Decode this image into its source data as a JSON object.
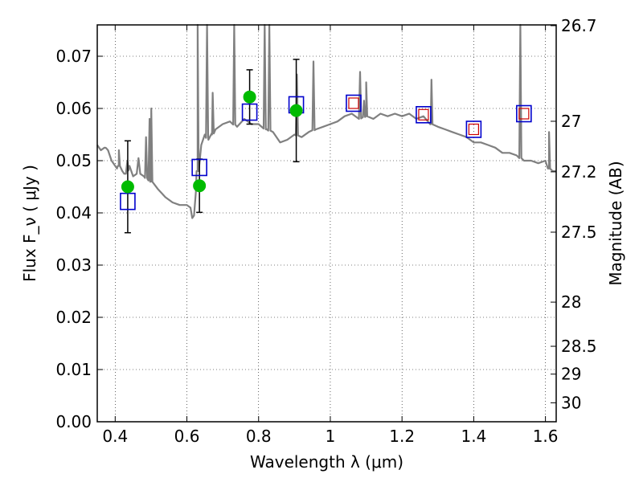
{
  "chart_data": {
    "type": "scatter",
    "xlabel": "Wavelength  λ (μm)",
    "ylabel_left": "Flux  F_ν  ( μJy )",
    "ylabel_right": "Magnitude (AB)",
    "xlim": [
      0.35,
      1.63
    ],
    "ylim": [
      0.0,
      0.076
    ],
    "grid": true,
    "x_ticks": [
      0.4,
      0.6,
      0.8,
      1.0,
      1.2,
      1.4,
      1.6
    ],
    "x_tick_labels": [
      "0.4",
      "0.6",
      "0.8",
      "1",
      "1.2",
      "1.4",
      "1.6"
    ],
    "y_ticks": [
      0.0,
      0.01,
      0.02,
      0.03,
      0.04,
      0.05,
      0.06,
      0.07
    ],
    "y_tick_labels": [
      "0.00",
      "0.01",
      "0.02",
      "0.03",
      "0.04",
      "0.05",
      "0.06",
      "0.07"
    ],
    "mag_ticks": [
      26.7,
      27.0,
      27.2,
      27.5,
      28.0,
      28.5,
      29.0,
      30.0
    ],
    "mag_tick_labels": [
      "26.7",
      "27",
      "27.2",
      "27.5",
      "28",
      "28.5",
      "29",
      "30"
    ],
    "colors": {
      "spectrum": "#808080",
      "observed": "#00bb00",
      "model_box": "#0000cc",
      "model_inner": "#cc0000",
      "errorbar": "#000000"
    },
    "spectrum": {
      "name": "",
      "x": [
        0.35,
        0.36,
        0.37,
        0.38,
        0.39,
        0.4,
        0.405,
        0.41,
        0.42,
        0.425,
        0.43,
        0.44,
        0.45,
        0.46,
        0.465,
        0.47,
        0.48,
        0.49,
        0.5,
        0.52,
        0.54,
        0.56,
        0.58,
        0.6,
        0.61,
        0.615,
        0.62,
        0.625,
        0.63,
        0.64,
        0.65,
        0.66,
        0.67,
        0.68,
        0.7,
        0.72,
        0.74,
        0.76,
        0.78,
        0.8,
        0.82,
        0.84,
        0.86,
        0.88,
        0.9,
        0.92,
        0.94,
        0.96,
        0.98,
        1.0,
        1.02,
        1.04,
        1.06,
        1.08,
        1.1,
        1.12,
        1.14,
        1.16,
        1.18,
        1.2,
        1.22,
        1.24,
        1.26,
        1.28,
        1.3,
        1.32,
        1.34,
        1.36,
        1.38,
        1.4,
        1.42,
        1.44,
        1.46,
        1.48,
        1.5,
        1.52,
        1.54,
        1.56,
        1.58,
        1.6,
        1.61,
        1.62,
        1.63
      ],
      "y": [
        0.053,
        0.052,
        0.0525,
        0.052,
        0.05,
        0.049,
        0.0485,
        0.049,
        0.048,
        0.0475,
        0.0475,
        0.049,
        0.047,
        0.0475,
        0.0505,
        0.0475,
        0.047,
        0.0465,
        0.046,
        0.0445,
        0.043,
        0.042,
        0.0415,
        0.0415,
        0.041,
        0.039,
        0.0395,
        0.044,
        0.048,
        0.053,
        0.055,
        0.054,
        0.055,
        0.056,
        0.057,
        0.0575,
        0.0565,
        0.058,
        0.057,
        0.057,
        0.056,
        0.0555,
        0.0535,
        0.054,
        0.055,
        0.0545,
        0.0555,
        0.056,
        0.0565,
        0.057,
        0.0575,
        0.0585,
        0.059,
        0.058,
        0.0585,
        0.058,
        0.059,
        0.0585,
        0.059,
        0.0585,
        0.059,
        0.058,
        0.0585,
        0.057,
        0.0565,
        0.056,
        0.0555,
        0.055,
        0.0545,
        0.0535,
        0.0535,
        0.053,
        0.0525,
        0.0515,
        0.0515,
        0.051,
        0.05,
        0.05,
        0.0495,
        0.05,
        0.0485,
        0.048,
        0.048
      ]
    },
    "spectrum_spikes": [
      {
        "x": 0.3717,
        "y": 0.0525
      },
      {
        "x": 0.4102,
        "y": 0.052
      },
      {
        "x": 0.434,
        "y": 0.05
      },
      {
        "x": 0.4861,
        "y": 0.0545
      },
      {
        "x": 0.4959,
        "y": 0.058
      },
      {
        "x": 0.5007,
        "y": 0.06
      },
      {
        "x": 0.63,
        "y": 0.076
      },
      {
        "x": 0.6563,
        "y": 0.076
      },
      {
        "x": 0.672,
        "y": 0.063
      },
      {
        "x": 0.732,
        "y": 0.076
      },
      {
        "x": 0.817,
        "y": 0.076
      },
      {
        "x": 0.83,
        "y": 0.076
      },
      {
        "x": 0.9069,
        "y": 0.0665
      },
      {
        "x": 0.9531,
        "y": 0.069
      },
      {
        "x": 1.083,
        "y": 0.067
      },
      {
        "x": 1.094,
        "y": 0.0615
      },
      {
        "x": 1.1,
        "y": 0.065
      },
      {
        "x": 1.282,
        "y": 0.0655
      },
      {
        "x": 1.53,
        "y": 0.076
      },
      {
        "x": 1.61,
        "y": 0.0555
      }
    ],
    "observed": {
      "name": "",
      "x": [
        0.435,
        0.635,
        0.775,
        0.905
      ],
      "y": [
        0.045,
        0.0452,
        0.0622,
        0.0596
      ],
      "yerr": [
        0.0088,
        0.0051,
        0.0052,
        0.0098
      ]
    },
    "model_boxes": {
      "name": "",
      "x": [
        0.435,
        0.635,
        0.775,
        0.905,
        1.065,
        1.26,
        1.4,
        1.54
      ],
      "y": [
        0.0422,
        0.0487,
        0.0593,
        0.0607,
        0.061,
        0.0588,
        0.056,
        0.059
      ],
      "inner_x": [
        1.065,
        1.26,
        1.4,
        1.54
      ],
      "inner_y": [
        0.061,
        0.0588,
        0.056,
        0.059
      ]
    }
  }
}
